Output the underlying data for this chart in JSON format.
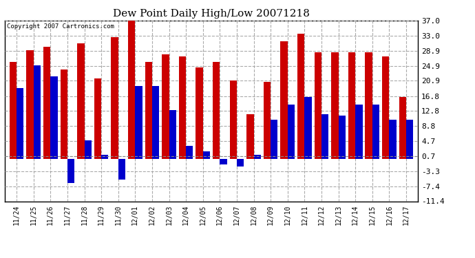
{
  "title": "Dew Point Daily High/Low 20071218",
  "copyright": "Copyright 2007 Cartronics.com",
  "dates": [
    "11/24",
    "11/25",
    "11/26",
    "11/27",
    "11/28",
    "11/29",
    "11/30",
    "12/01",
    "12/02",
    "12/03",
    "12/04",
    "12/05",
    "12/06",
    "12/07",
    "12/08",
    "12/09",
    "12/10",
    "12/11",
    "12/12",
    "12/13",
    "12/14",
    "12/15",
    "12/16",
    "12/17"
  ],
  "highs": [
    26.0,
    29.0,
    30.0,
    24.0,
    31.0,
    21.5,
    32.5,
    38.0,
    26.0,
    28.0,
    27.5,
    24.5,
    26.0,
    21.0,
    12.0,
    20.5,
    31.5,
    33.5,
    28.5,
    28.5,
    28.5,
    28.5,
    27.5,
    16.5
  ],
  "lows": [
    19.0,
    25.0,
    22.0,
    -6.5,
    5.0,
    1.0,
    -5.5,
    19.5,
    19.5,
    13.0,
    3.5,
    2.0,
    -1.5,
    -2.0,
    1.0,
    10.5,
    14.5,
    16.5,
    12.0,
    11.5,
    14.5,
    14.5,
    10.5,
    10.5
  ],
  "ylim": [
    -11.4,
    37.0
  ],
  "yticks": [
    -11.4,
    -7.4,
    -3.3,
    0.7,
    4.7,
    8.8,
    12.8,
    16.8,
    20.9,
    24.9,
    28.9,
    33.0,
    37.0
  ],
  "high_color": "#cc0000",
  "low_color": "#0000cc",
  "bg_color": "#ffffff",
  "grid_color": "#aaaaaa",
  "bar_width": 0.42,
  "figsize": [
    6.9,
    3.75
  ],
  "dpi": 100
}
